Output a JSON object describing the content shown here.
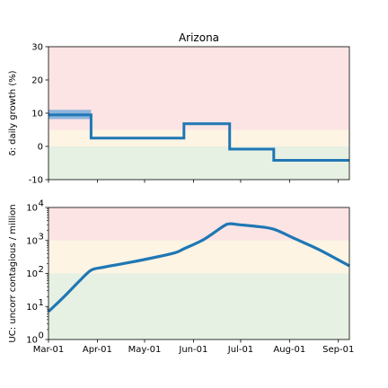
{
  "chart_data": [
    {
      "type": "line",
      "title": "Arizona",
      "ylabel": "δ: daily growth (%)",
      "xlabel": "",
      "ylim": [
        -10,
        30
      ],
      "yticks": [
        -10,
        0,
        10,
        20,
        30
      ],
      "x_range": [
        "2020-03-01",
        "2020-09-08"
      ],
      "x_ticks": [
        "2020-03-01",
        "2020-04-01",
        "2020-05-01",
        "2020-06-01",
        "2020-07-01",
        "2020-08-01",
        "2020-09-01"
      ],
      "grid": false,
      "bands": [
        {
          "from": -10,
          "to": 0,
          "color": "#e6f0e3"
        },
        {
          "from": 0,
          "to": 5,
          "color": "#fdf4e4"
        },
        {
          "from": 5,
          "to": 30,
          "color": "#fde4e4"
        }
      ],
      "line_color": "#1f77b4",
      "uncertainty_color": "#8fb4dd",
      "series": [
        {
          "x": [
            "2020-03-01",
            "2020-03-28",
            "2020-03-28",
            "2020-05-26",
            "2020-05-26",
            "2020-06-24",
            "2020-06-24",
            "2020-07-22",
            "2020-07-22",
            "2020-09-08"
          ],
          "values": [
            9.5,
            9.5,
            2.5,
            2.5,
            6.8,
            6.8,
            -0.8,
            -0.8,
            -4.2,
            -4.2
          ],
          "band_x": [
            "2020-03-01",
            "2020-03-28"
          ],
          "band_low": [
            8.2,
            8.2
          ],
          "band_high": [
            11.0,
            11.0
          ]
        }
      ]
    },
    {
      "type": "line",
      "title": "",
      "ylabel": "UC: uncorr contagious / million",
      "xlabel": "",
      "yscale": "log",
      "ylim": [
        1,
        10000
      ],
      "yticks": [
        "10^0",
        "10^1",
        "10^2",
        "10^3",
        "10^4"
      ],
      "x_range": [
        "2020-03-01",
        "2020-09-08"
      ],
      "x_ticks": [
        "Mar-01",
        "Apr-01",
        "May-01",
        "Jun-01",
        "Jul-01",
        "Aug-01",
        "Sep-01"
      ],
      "grid": false,
      "bands": [
        {
          "from": 1,
          "to": 100,
          "color": "#e6f0e3"
        },
        {
          "from": 100,
          "to": 1000,
          "color": "#fdf4e4"
        },
        {
          "from": 1000,
          "to": 10000,
          "color": "#fde4e4"
        }
      ],
      "line_color": "#1f77b4",
      "series": [
        {
          "x": [
            "2020-03-01",
            "2020-03-10",
            "2020-03-20",
            "2020-03-28",
            "2020-04-05",
            "2020-04-20",
            "2020-05-05",
            "2020-05-20",
            "2020-05-26",
            "2020-06-08",
            "2020-06-20",
            "2020-06-24",
            "2020-06-30",
            "2020-07-10",
            "2020-07-22",
            "2020-08-05",
            "2020-08-20",
            "2020-09-08"
          ],
          "values": [
            7,
            18,
            55,
            125,
            155,
            210,
            290,
            420,
            560,
            1100,
            2700,
            3200,
            3000,
            2700,
            2200,
            1100,
            520,
            170
          ]
        }
      ]
    }
  ]
}
